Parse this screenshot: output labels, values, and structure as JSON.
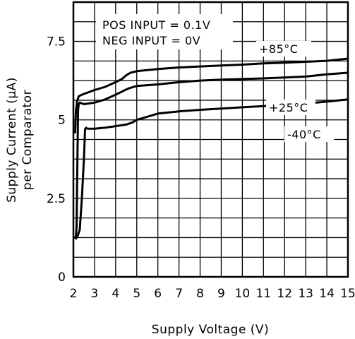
{
  "chart_data": {
    "type": "line",
    "xlabel": "Supply Voltage (V)",
    "ylabel": [
      "Supply Current (μA)",
      "per Comparator"
    ],
    "xlim": [
      2,
      15
    ],
    "ylim": [
      0,
      8.75
    ],
    "x_ticks": [
      2,
      3,
      4,
      5,
      6,
      7,
      8,
      9,
      10,
      11,
      12,
      13,
      14,
      15
    ],
    "x_tick_labels": [
      "2",
      "3",
      "4",
      "5",
      "6",
      "7",
      "8",
      "9",
      "10",
      "11",
      "12",
      "13",
      "14",
      "15"
    ],
    "y_ticks": [
      0,
      2.5,
      5,
      7.5
    ],
    "y_tick_labels": [
      "0",
      "2.5",
      "5",
      "7.5"
    ],
    "grid": true,
    "annotations": [
      "POS INPUT = 0.1V",
      "NEG INPUT = 0V"
    ],
    "series": [
      {
        "name": "+85°C",
        "x": [
          2.08,
          2.12,
          2.18,
          2.25,
          2.4,
          2.6,
          3.0,
          3.5,
          4.0,
          4.3,
          4.5,
          4.7,
          5.0,
          6.0,
          7.0,
          8.0,
          9.0,
          10.0,
          11.0,
          12.0,
          13.0,
          14.0,
          15.0
        ],
        "y": [
          4.6,
          5.3,
          5.6,
          5.75,
          5.8,
          5.85,
          5.95,
          6.05,
          6.2,
          6.3,
          6.42,
          6.5,
          6.55,
          6.62,
          6.67,
          6.7,
          6.73,
          6.76,
          6.8,
          6.82,
          6.85,
          6.88,
          6.95
        ]
      },
      {
        "name": "+25°C",
        "x": [
          2.08,
          2.12,
          2.15,
          2.18,
          2.22,
          2.25,
          2.3,
          2.5,
          3.0,
          3.5,
          4.0,
          4.3,
          4.6,
          5.0,
          6.0,
          7.0,
          8.0,
          9.0,
          10.0,
          11.0,
          12.0,
          13.0,
          14.0,
          15.0
        ],
        "y": [
          1.25,
          1.3,
          1.6,
          3.2,
          5.3,
          5.5,
          5.55,
          5.5,
          5.55,
          5.65,
          5.8,
          5.9,
          6.0,
          6.08,
          6.13,
          6.2,
          6.25,
          6.28,
          6.3,
          6.32,
          6.35,
          6.38,
          6.45,
          6.5
        ]
      },
      {
        "name": "-40°C",
        "x": [
          2.12,
          2.2,
          2.3,
          2.4,
          2.5,
          2.55,
          2.6,
          2.65,
          3.0,
          3.5,
          4.0,
          4.5,
          4.8,
          5.0,
          5.5,
          6.0,
          7.0,
          8.0,
          9.0,
          10.0,
          11.0,
          12.0,
          13.0,
          14.0,
          15.0
        ],
        "y": [
          1.22,
          1.3,
          1.5,
          2.5,
          3.8,
          4.7,
          4.75,
          4.72,
          4.72,
          4.75,
          4.8,
          4.85,
          4.92,
          5.0,
          5.1,
          5.2,
          5.27,
          5.32,
          5.36,
          5.4,
          5.44,
          5.47,
          5.52,
          5.58,
          5.65
        ]
      }
    ]
  }
}
